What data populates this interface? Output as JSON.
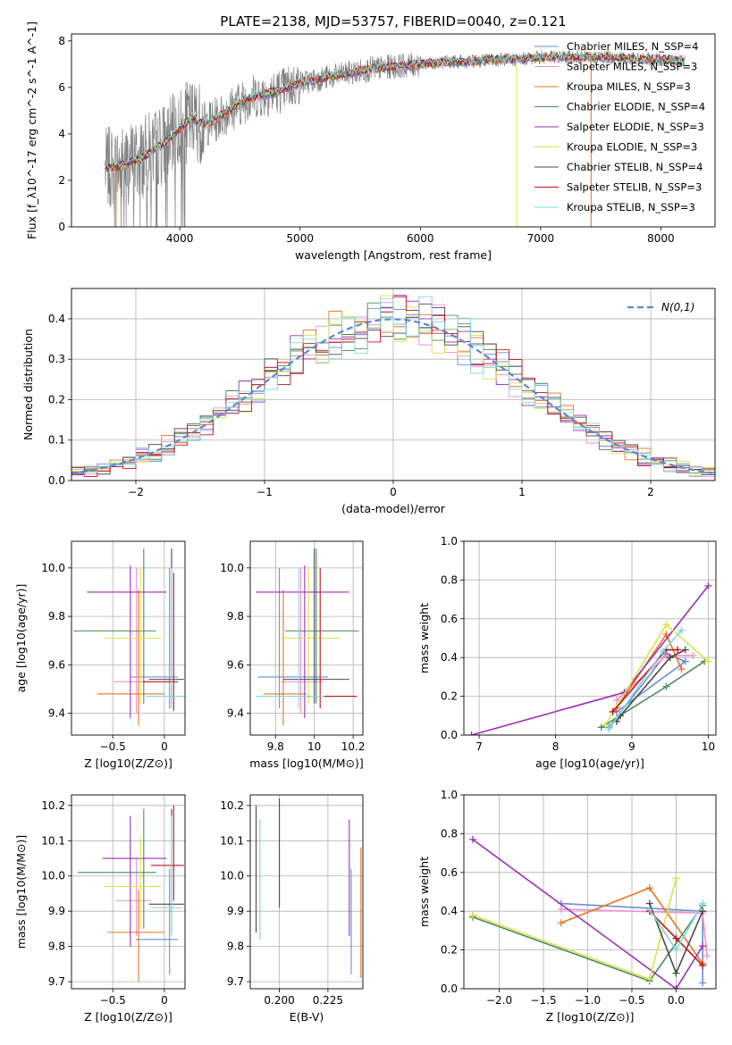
{
  "figure": {
    "title": "PLATE=2138, MJD=53757, FIBERID=0040, z=0.121"
  },
  "colors": {
    "c0": "#6b8ed6",
    "c1": "#f08fd0",
    "c2": "#e8731f",
    "c3": "#4f8a5b",
    "c4": "#9b2fb5",
    "c5": "#d7e44b",
    "c6": "#4a4a4a",
    "c7": "#c0141a",
    "c8": "#7fd8dd",
    "data": "#808080",
    "gauss": "#5b87cf"
  },
  "chart_data": [
    {
      "id": "spectrum",
      "type": "line",
      "title": "PLATE=2138, MJD=53757, FIBERID=0040, z=0.121",
      "xlabel": "wavelength [Angstrom, rest frame]",
      "ylabel": "Flux [f_λ10^-17 erg cm^-2 s^-1 A^-1]",
      "xlim": [
        3100,
        8450
      ],
      "ylim": [
        0,
        8.3
      ],
      "xticks": [
        4000,
        5000,
        6000,
        7000,
        8000
      ],
      "yticks": [
        0,
        2,
        4,
        6,
        8
      ],
      "grid": false,
      "legend_position": "top-right",
      "legend": [
        {
          "label": "Chabrier MILES, N_SSP=4",
          "color": "c0"
        },
        {
          "label": "Salpeter MILES, N_SSP=3",
          "color": "c1"
        },
        {
          "label": "Kroupa MILES, N_SSP=3",
          "color": "c2"
        },
        {
          "label": "Chabrier ELODIE, N_SSP=4",
          "color": "c3"
        },
        {
          "label": "Salpeter ELODIE, N_SSP=3",
          "color": "c4"
        },
        {
          "label": "Kroupa ELODIE, N_SSP=3",
          "color": "c5"
        },
        {
          "label": "Chabrier STELIB, N_SSP=4",
          "color": "c6"
        },
        {
          "label": "Salpeter STELIB, N_SSP=3",
          "color": "c7"
        },
        {
          "label": "Kroupa STELIB, N_SSP=3",
          "color": "c8"
        }
      ],
      "continuum": {
        "x": [
          3380,
          3500,
          3600,
          3700,
          3800,
          3900,
          4000,
          4100,
          4200,
          4300,
          4400,
          4500,
          4600,
          4700,
          4800,
          4900,
          5000,
          5200,
          5400,
          5600,
          5800,
          6000,
          6200,
          6400,
          6600,
          6800,
          7000,
          7200,
          7400,
          7600,
          7800,
          8000,
          8200
        ],
        "y": [
          2.5,
          2.6,
          2.8,
          3.0,
          3.4,
          3.7,
          4.2,
          4.7,
          4.4,
          4.6,
          5.0,
          5.3,
          5.6,
          5.7,
          5.8,
          6.0,
          6.2,
          6.4,
          6.6,
          6.8,
          6.9,
          7.0,
          7.1,
          7.1,
          7.2,
          7.2,
          7.3,
          7.3,
          7.3,
          7.3,
          7.2,
          7.2,
          7.1
        ]
      }
    },
    {
      "id": "residuals",
      "type": "histogram",
      "xlabel": "(data-model)/error",
      "ylabel": "Normed distribution",
      "xlim": [
        -2.5,
        2.5
      ],
      "ylim": [
        0,
        0.475
      ],
      "xticks": [
        -2,
        -1,
        0,
        1,
        2
      ],
      "yticks": [
        0.0,
        0.1,
        0.2,
        0.3,
        0.4
      ],
      "grid": true,
      "legend_position": "top-right",
      "legend": [
        {
          "label": "N(0,1)",
          "color": "gauss",
          "style": "dashed"
        }
      ],
      "bin_width": 0.1
    },
    {
      "id": "age_vs_Z",
      "type": "errorbar",
      "xlabel": "Z [log10(Z/Z⊙)]",
      "ylabel": "age  [log10(age/yr)]",
      "xlim": [
        -0.9,
        0.2
      ],
      "ylim": [
        9.31,
        10.11
      ],
      "xticks": [
        -0.5,
        0.0
      ],
      "yticks": [
        9.4,
        9.6,
        9.8,
        10.0
      ],
      "grid": true,
      "points": [
        {
          "color": "c0",
          "x": 0.05,
          "xerr": [
            0.38,
            0.08
          ],
          "y": 9.55,
          "yerr": [
            0.13,
            0.45
          ]
        },
        {
          "color": "c1",
          "x": -0.27,
          "xerr": [
            0.22,
            0.14
          ],
          "y": 9.53,
          "yerr": [
            0.13,
            0.47
          ]
        },
        {
          "color": "c2",
          "x": -0.25,
          "xerr": [
            0.4,
            0.25
          ],
          "y": 9.48,
          "yerr": [
            0.13,
            0.43
          ]
        },
        {
          "color": "c3",
          "x": -0.2,
          "xerr": [
            0.68,
            0.12
          ],
          "y": 9.74,
          "yerr": [
            0.3,
            0.34
          ]
        },
        {
          "color": "c4",
          "x": -0.33,
          "xerr": [
            0.42,
            0.35
          ],
          "y": 9.9,
          "yerr": [
            0.52,
            0.11
          ]
        },
        {
          "color": "c5",
          "x": -0.23,
          "xerr": [
            0.35,
            0.2
          ],
          "y": 9.71,
          "yerr": [
            0.27,
            0.29
          ]
        },
        {
          "color": "c6",
          "x": 0.07,
          "xerr": [
            0.22,
            0.12
          ],
          "y": 9.54,
          "yerr": [
            0.1,
            0.54
          ]
        },
        {
          "color": "c7",
          "x": 0.09,
          "xerr": [
            0.3,
            0.04
          ],
          "y": 9.53,
          "yerr": [
            0.12,
            0.45
          ]
        },
        {
          "color": "c8",
          "x": 0.07,
          "xerr": [
            0.25,
            0.13
          ],
          "y": 9.47,
          "yerr": [
            0.05,
            0.53
          ]
        }
      ]
    },
    {
      "id": "age_vs_mass",
      "type": "errorbar",
      "xlabel": "mass [log10(M/M⊙)]",
      "ylabel": "",
      "xlim": [
        9.67,
        10.25
      ],
      "ylim": [
        9.31,
        10.11
      ],
      "xticks": [
        9.8,
        10.0,
        10.2
      ],
      "yticks": [
        9.4,
        9.6,
        9.8,
        10.0
      ],
      "grid": true,
      "points": [
        {
          "color": "c0",
          "x": 9.82,
          "xerr": [
            0.11,
            0.25
          ],
          "y": 9.55,
          "yerr": [
            0.13,
            0.45
          ]
        },
        {
          "color": "c1",
          "x": 9.93,
          "xerr": [
            0.1,
            0.12
          ],
          "y": 9.53,
          "yerr": [
            0.13,
            0.47
          ]
        },
        {
          "color": "c2",
          "x": 9.84,
          "xerr": [
            0.1,
            0.12
          ],
          "y": 9.48,
          "yerr": [
            0.13,
            0.43
          ]
        },
        {
          "color": "c3",
          "x": 10.01,
          "xerr": [
            0.16,
            0.22
          ],
          "y": 9.74,
          "yerr": [
            0.3,
            0.34
          ]
        },
        {
          "color": "c4",
          "x": 9.95,
          "xerr": [
            0.25,
            0.23
          ],
          "y": 9.9,
          "yerr": [
            0.52,
            0.11
          ]
        },
        {
          "color": "c5",
          "x": 9.97,
          "xerr": [
            0.14,
            0.16
          ],
          "y": 9.71,
          "yerr": [
            0.27,
            0.29
          ]
        },
        {
          "color": "c6",
          "x": 10.0,
          "xerr": [
            0.16,
            0.18
          ],
          "y": 9.54,
          "yerr": [
            0.1,
            0.54
          ]
        },
        {
          "color": "c7",
          "x": 10.03,
          "xerr": [
            0.09,
            0.19
          ],
          "y": 9.47,
          "yerr": [
            0.05,
            0.53
          ]
        },
        {
          "color": "c8",
          "x": 9.92,
          "xerr": [
            0.22,
            0.13
          ],
          "y": 9.47,
          "yerr": [
            0.05,
            0.53
          ]
        }
      ]
    },
    {
      "id": "weight_vs_age",
      "type": "line",
      "xlabel": "age  [log10(age/yr)]",
      "ylabel": "mass weight",
      "xlim": [
        6.8,
        10.1
      ],
      "ylim": [
        0,
        1
      ],
      "xticks": [
        7,
        8,
        9,
        10
      ],
      "yticks": [
        0.0,
        0.2,
        0.4,
        0.6,
        0.8,
        1.0
      ],
      "grid": true,
      "series": [
        {
          "color": "c0",
          "x": [
            8.7,
            9.45,
            9.7,
            8.8
          ],
          "y": [
            0.04,
            0.42,
            0.38,
            0.12
          ]
        },
        {
          "color": "c1",
          "x": [
            8.8,
            9.45,
            9.8
          ],
          "y": [
            0.18,
            0.41,
            0.41
          ]
        },
        {
          "color": "c2",
          "x": [
            8.8,
            9.45,
            9.65
          ],
          "y": [
            0.14,
            0.52,
            0.34
          ]
        },
        {
          "color": "c3",
          "x": [
            8.6,
            9.45,
            9.95
          ],
          "y": [
            0.04,
            0.25,
            0.38
          ]
        },
        {
          "color": "c4",
          "x": [
            6.9,
            8.9,
            10.0
          ],
          "y": [
            0.0,
            0.22,
            0.77
          ]
        },
        {
          "color": "c5",
          "x": [
            8.65,
            9.45,
            10.0
          ],
          "y": [
            0.05,
            0.57,
            0.38
          ]
        },
        {
          "color": "c6",
          "x": [
            8.8,
            8.85,
            9.5,
            9.7
          ],
          "y": [
            0.07,
            0.1,
            0.4,
            0.44
          ]
        },
        {
          "color": "c7",
          "x": [
            8.75,
            9.45,
            9.6
          ],
          "y": [
            0.12,
            0.44,
            0.44
          ]
        },
        {
          "color": "c8",
          "x": [
            8.7,
            9.4,
            9.65
          ],
          "y": [
            0.03,
            0.43,
            0.54
          ]
        }
      ]
    },
    {
      "id": "mass_vs_Z",
      "type": "errorbar",
      "xlabel": "Z [log10(Z/Z⊙)]",
      "ylabel": "mass [log10(M/M⊙)]",
      "xlim": [
        -0.9,
        0.2
      ],
      "ylim": [
        9.68,
        10.23
      ],
      "xticks": [
        -0.5,
        0.0
      ],
      "yticks": [
        9.7,
        9.8,
        9.9,
        10.0,
        10.1,
        10.2
      ],
      "grid": true,
      "points": [
        {
          "color": "c0",
          "x": 0.05,
          "xerr": [
            0.33,
            0.08
          ],
          "y": 9.82,
          "yerr": [
            0.1,
            0.2
          ]
        },
        {
          "color": "c1",
          "x": -0.27,
          "xerr": [
            0.2,
            0.14
          ],
          "y": 9.93,
          "yerr": [
            0.1,
            0.12
          ]
        },
        {
          "color": "c2",
          "x": -0.25,
          "xerr": [
            0.3,
            0.25
          ],
          "y": 9.84,
          "yerr": [
            0.14,
            0.12
          ]
        },
        {
          "color": "c3",
          "x": -0.2,
          "xerr": [
            0.64,
            0.12
          ],
          "y": 10.01,
          "yerr": [
            0.16,
            0.18
          ]
        },
        {
          "color": "c4",
          "x": -0.33,
          "xerr": [
            0.27,
            0.35
          ],
          "y": 10.05,
          "yerr": [
            0.25,
            0.12
          ]
        },
        {
          "color": "c5",
          "x": -0.23,
          "xerr": [
            0.35,
            0.2
          ],
          "y": 9.97,
          "yerr": [
            0.12,
            0.14
          ]
        },
        {
          "color": "c6",
          "x": 0.07,
          "xerr": [
            0.22,
            0.12
          ],
          "y": 9.92,
          "yerr": [
            0.08,
            0.27
          ]
        },
        {
          "color": "c7",
          "x": 0.09,
          "xerr": [
            0.22,
            0.1
          ],
          "y": 10.03,
          "yerr": [
            0.1,
            0.17
          ]
        },
        {
          "color": "c8",
          "x": 0.07,
          "xerr": [
            0.2,
            0.1
          ],
          "y": 9.91,
          "yerr": [
            0.08,
            0.26
          ]
        }
      ]
    },
    {
      "id": "mass_vs_EBV",
      "type": "errorbar",
      "xlabel": "E(B-V)",
      "ylabel": "",
      "xlim": [
        0.185,
        0.243
      ],
      "ylim": [
        9.68,
        10.23
      ],
      "xticks": [
        0.2,
        0.225
      ],
      "yticks": [
        9.7,
        9.8,
        9.9,
        10.0,
        10.1,
        10.2
      ],
      "grid": true,
      "points": [
        {
          "color": "c0",
          "x": 0.237,
          "y": 9.82,
          "yerr": [
            0.1,
            0.2
          ]
        },
        {
          "color": "c2",
          "x": 0.242,
          "y": 9.84,
          "yerr": [
            0.13,
            0.24
          ]
        },
        {
          "color": "c3",
          "x": 0.188,
          "y": 10.0,
          "yerr": [
            0.16,
            0.2
          ]
        },
        {
          "color": "c4",
          "x": 0.236,
          "y": 10.0,
          "yerr": [
            0.17,
            0.16
          ]
        },
        {
          "color": "c5",
          "x": 0.19,
          "y": 9.99,
          "yerr": [
            0.17,
            0.17
          ]
        },
        {
          "color": "c6",
          "x": 0.188,
          "y": 10.02,
          "yerr": [
            0.18,
            0.18
          ]
        },
        {
          "color": "c7",
          "x": 0.2,
          "y": 10.06,
          "yerr": [
            0.15,
            0.16
          ]
        },
        {
          "color": "c8",
          "x": 0.19,
          "y": 9.99,
          "yerr": [
            0.17,
            0.17
          ]
        }
      ]
    },
    {
      "id": "weight_vs_Z",
      "type": "line",
      "xlabel": "Z [log10(Z/Z⊙)]",
      "ylabel": "mass weight",
      "xlim": [
        -2.4,
        0.45
      ],
      "ylim": [
        0,
        1
      ],
      "xticks": [
        -2.0,
        -1.5,
        -1.0,
        -0.5,
        0.0
      ],
      "yticks": [
        0.0,
        0.2,
        0.4,
        0.6,
        0.8,
        1.0
      ],
      "grid": true,
      "series": [
        {
          "color": "c0",
          "x": [
            -1.3,
            0.3,
            0.3
          ],
          "y": [
            0.44,
            0.4,
            0.03
          ]
        },
        {
          "color": "c1",
          "x": [
            -1.3,
            0.3,
            0.35
          ],
          "y": [
            0.41,
            0.39,
            0.17
          ]
        },
        {
          "color": "c2",
          "x": [
            -1.3,
            -0.3,
            0.3
          ],
          "y": [
            0.34,
            0.52,
            0.13
          ]
        },
        {
          "color": "c3",
          "x": [
            -2.3,
            -0.3,
            0.3
          ],
          "y": [
            0.37,
            0.04,
            0.43
          ]
        },
        {
          "color": "c4",
          "x": [
            -2.3,
            0.0,
            0.3
          ],
          "y": [
            0.77,
            0.0,
            0.22
          ]
        },
        {
          "color": "c5",
          "x": [
            -2.3,
            -0.3,
            0.0
          ],
          "y": [
            0.38,
            0.05,
            0.57
          ]
        },
        {
          "color": "c6",
          "x": [
            -0.3,
            0.0,
            0.3
          ],
          "y": [
            0.44,
            0.08,
            0.4
          ]
        },
        {
          "color": "c7",
          "x": [
            -0.3,
            0.0,
            0.3
          ],
          "y": [
            0.4,
            0.26,
            0.12
          ]
        },
        {
          "color": "c8",
          "x": [
            -0.3,
            0.0,
            0.3
          ],
          "y": [
            0.41,
            0.2,
            0.44
          ]
        }
      ]
    }
  ]
}
